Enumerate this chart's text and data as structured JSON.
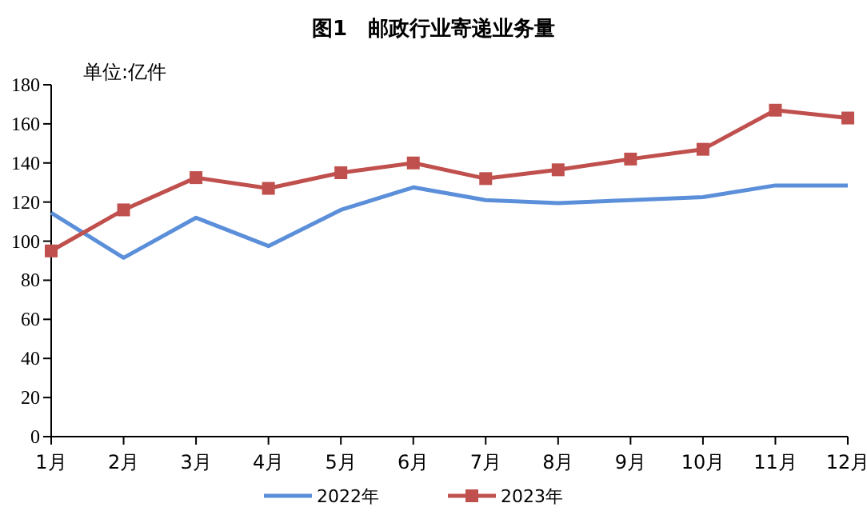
{
  "chart_data": {
    "type": "line",
    "title": "图1　邮政行业寄递业务量",
    "annotations": [
      "单位:亿件"
    ],
    "categories": [
      "1月",
      "2月",
      "3月",
      "4月",
      "5月",
      "6月",
      "7月",
      "8月",
      "9月",
      "10月",
      "11月",
      "12月"
    ],
    "series": [
      {
        "name": "2022年",
        "color": "#5b8fd9",
        "marker": "none",
        "values": [
          114.5,
          91.5,
          112,
          97.5,
          116,
          127.5,
          121,
          119.5,
          121,
          122.5,
          128.5,
          128.5
        ]
      },
      {
        "name": "2023年",
        "color": "#c0504d",
        "marker": "square",
        "values": [
          95,
          116,
          132.5,
          127,
          135,
          140,
          132,
          136.5,
          142,
          147,
          167,
          163
        ]
      }
    ],
    "ylim": [
      0,
      180
    ],
    "yticks": [
      0,
      20,
      40,
      60,
      80,
      100,
      120,
      140,
      160,
      180
    ],
    "grid": false,
    "legend": "bottom",
    "line_style": "solid"
  }
}
